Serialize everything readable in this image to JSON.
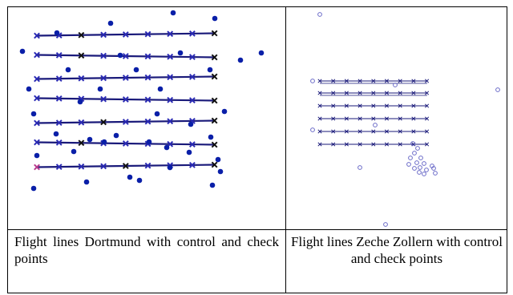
{
  "captions": {
    "dortmund": "Flight lines Dortmund with control and check points",
    "zollern": "Flight lines Zeche Zollern with control and check points"
  },
  "colors": {
    "line": "#1a1a7a",
    "blue_marker": "#2a2ab4",
    "black_marker": "#111111",
    "dot": "#0a1fa8",
    "circle": "#6b6bc8",
    "magenta": "#b83a8e"
  },
  "legend_note": ""
}
